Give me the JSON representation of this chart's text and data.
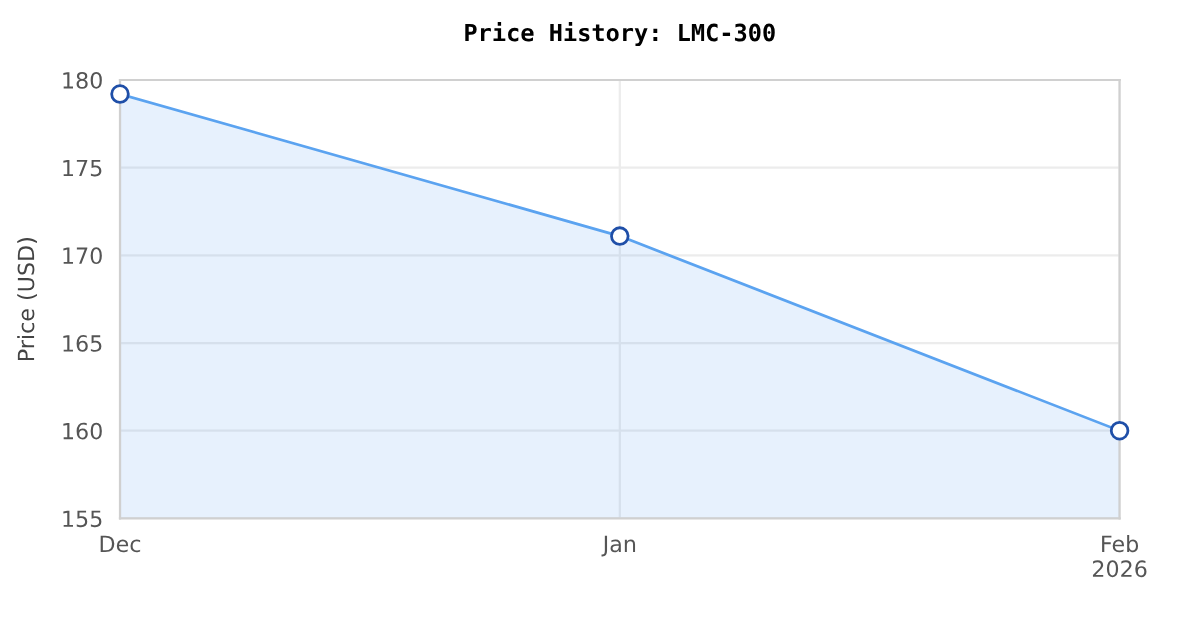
{
  "chart_data": {
    "type": "area",
    "title": "Price History: LMC-300",
    "ylabel": "Price (USD)",
    "x": [
      "2025-12-01",
      "2026-01-01",
      "2026-02-01"
    ],
    "series": [
      {
        "color": "#5ba3f0",
        "values": [
          179.2,
          171.1,
          160.0
        ]
      }
    ],
    "xlim": [
      "2025-12-01",
      "2026-02-01"
    ],
    "xticks": [
      {
        "value": "2025-12-01",
        "label": "Dec"
      },
      {
        "value": "2026-01-01",
        "label": "Jan"
      },
      {
        "value": "2026-02-01",
        "label": "Feb\n2026"
      }
    ],
    "ylim": [
      155,
      180
    ],
    "yticks": [
      155,
      160,
      165,
      170,
      175,
      180
    ],
    "grid": true,
    "marker": "circle",
    "line_style": "solid",
    "legend": false
  }
}
